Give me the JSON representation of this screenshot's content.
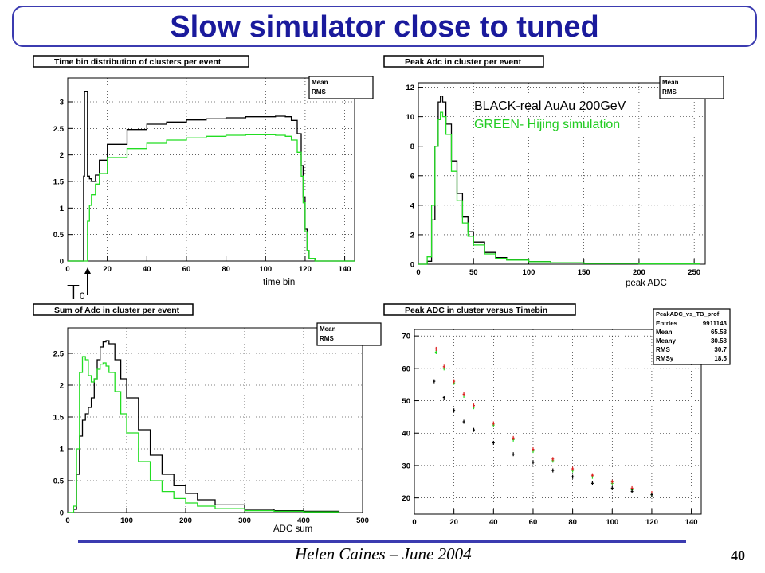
{
  "slide": {
    "title": "Slow simulator close to tuned",
    "author": "Helen Caines – June 2004",
    "number": "40"
  },
  "colors": {
    "real": "#000000",
    "sim": "#22dd22",
    "profile": "#dd2222",
    "title": "#1a1a9c",
    "accent": "#3b3bb0"
  },
  "annotations": {
    "t0_main": "T",
    "t0_sub": "0",
    "legend_black": "BLACK-real AuAu 200GeV",
    "legend_green": "GREEN- Hijing simulation"
  },
  "stats_common": {
    "mean": "Mean",
    "rms": "RMS"
  },
  "stats_box": {
    "title": "PeakADC_vs_TB_prof",
    "rows": [
      {
        "label": "Entries",
        "value": "9911143"
      },
      {
        "label": "Mean",
        "value": "65.58"
      },
      {
        "label": "Meany",
        "value": "30.58"
      },
      {
        "label": "RMS",
        "value": "30.7"
      },
      {
        "label": "RMSy",
        "value": "18.5"
      }
    ]
  },
  "chart_data": [
    {
      "type": "line",
      "title": "Time bin distribution of clusters per event",
      "xlabel": "time bin",
      "ylabel": "",
      "xlim": [
        0,
        145
      ],
      "ylim": [
        0,
        3.45
      ],
      "xticks": [
        0,
        20,
        40,
        60,
        80,
        100,
        120,
        140
      ],
      "yticks": [
        0,
        0.5,
        1,
        1.5,
        2,
        2.5,
        3
      ],
      "series": [
        {
          "color": "black",
          "x": [
            0,
            7.5,
            8,
            8.5,
            9,
            10,
            11,
            12,
            14,
            16,
            20,
            30,
            40,
            50,
            60,
            70,
            80,
            90,
            100,
            105,
            110,
            113,
            116,
            118,
            119,
            120,
            121,
            122,
            125,
            145
          ],
          "y": [
            0,
            0,
            1.6,
            3.2,
            3.2,
            1.6,
            1.55,
            1.5,
            1.62,
            1.9,
            2.2,
            2.48,
            2.58,
            2.62,
            2.66,
            2.68,
            2.7,
            2.72,
            2.72,
            2.73,
            2.72,
            2.65,
            2.4,
            1.8,
            1.2,
            0.6,
            0.2,
            0.05,
            0,
            0
          ]
        },
        {
          "color": "green",
          "x": [
            0,
            9.5,
            10,
            11,
            12,
            14,
            16,
            20,
            30,
            40,
            50,
            60,
            70,
            80,
            90,
            100,
            105,
            110,
            113,
            116,
            118,
            119,
            120,
            121,
            122,
            125,
            145
          ],
          "y": [
            0,
            0,
            0.75,
            1.05,
            1.25,
            1.45,
            1.65,
            1.95,
            2.12,
            2.22,
            2.28,
            2.32,
            2.35,
            2.37,
            2.38,
            2.38,
            2.37,
            2.35,
            2.28,
            2.05,
            1.6,
            1.1,
            0.55,
            0.2,
            0.05,
            0,
            0
          ]
        }
      ]
    },
    {
      "type": "line",
      "title": "Peak Adc in cluster per event",
      "xlabel": "peak ADC",
      "ylabel": "",
      "xlim": [
        0,
        260
      ],
      "ylim": [
        0,
        12.3
      ],
      "xticks": [
        0,
        50,
        100,
        150,
        200,
        250
      ],
      "yticks": [
        0,
        2,
        4,
        6,
        8,
        10,
        12
      ],
      "series": [
        {
          "color": "black",
          "x": [
            0,
            8,
            12,
            15,
            18,
            20,
            22,
            25,
            30,
            35,
            40,
            45,
            50,
            60,
            70,
            80,
            100,
            120,
            150,
            200,
            255
          ],
          "y": [
            0,
            0.2,
            3.0,
            8.0,
            11.0,
            11.4,
            11.0,
            9.5,
            7.0,
            4.8,
            3.2,
            2.2,
            1.5,
            0.8,
            0.45,
            0.3,
            0.18,
            0.1,
            0.05,
            0.02,
            0
          ]
        },
        {
          "color": "green",
          "x": [
            0,
            8,
            12,
            15,
            18,
            20,
            22,
            25,
            30,
            35,
            40,
            45,
            50,
            60,
            70,
            80,
            100,
            120,
            150,
            200,
            255
          ],
          "y": [
            0,
            0.5,
            4.0,
            8.0,
            9.8,
            10.3,
            10.0,
            8.8,
            6.3,
            4.3,
            2.8,
            1.9,
            1.3,
            0.7,
            0.4,
            0.28,
            0.17,
            0.1,
            0.05,
            0.02,
            0
          ]
        }
      ]
    },
    {
      "type": "line",
      "title": "Sum of Adc in cluster per event",
      "xlabel": "ADC sum",
      "ylabel": "",
      "xlim": [
        0,
        500
      ],
      "ylim": [
        0,
        2.9
      ],
      "xticks": [
        0,
        100,
        200,
        300,
        400,
        500
      ],
      "yticks": [
        0,
        0.5,
        1,
        1.5,
        2,
        2.5
      ],
      "series": [
        {
          "color": "black",
          "x": [
            0,
            10,
            15,
            20,
            25,
            30,
            35,
            40,
            45,
            50,
            55,
            60,
            65,
            70,
            80,
            90,
            100,
            120,
            140,
            160,
            180,
            200,
            220,
            250,
            300,
            350,
            400,
            460
          ],
          "y": [
            0,
            0.05,
            0.6,
            1.2,
            1.45,
            1.55,
            1.65,
            1.8,
            2.1,
            2.4,
            2.6,
            2.68,
            2.7,
            2.65,
            2.4,
            2.1,
            1.8,
            1.3,
            0.9,
            0.6,
            0.42,
            0.3,
            0.2,
            0.12,
            0.05,
            0.03,
            0.02,
            0.01
          ]
        },
        {
          "color": "green",
          "x": [
            0,
            10,
            15,
            20,
            25,
            30,
            35,
            40,
            45,
            50,
            55,
            60,
            65,
            70,
            80,
            90,
            100,
            120,
            140,
            160,
            180,
            200,
            220,
            250,
            300,
            350,
            400,
            460
          ],
          "y": [
            0,
            0.1,
            1.0,
            2.2,
            2.45,
            2.4,
            2.15,
            2.05,
            2.1,
            2.25,
            2.33,
            2.35,
            2.3,
            2.2,
            1.9,
            1.55,
            1.25,
            0.8,
            0.5,
            0.33,
            0.22,
            0.15,
            0.1,
            0.06,
            0.03,
            0.02,
            0.01,
            0
          ]
        }
      ]
    },
    {
      "type": "scatter",
      "title": "Peak ADC in cluster versus Timebin",
      "xlabel": "",
      "ylabel": "",
      "xlim": [
        0,
        145
      ],
      "ylim": [
        15,
        72
      ],
      "xticks": [
        0,
        20,
        40,
        60,
        80,
        100,
        120,
        140
      ],
      "yticks": [
        20,
        30,
        40,
        50,
        60,
        70
      ],
      "series": [
        {
          "color": "green",
          "x": [
            11,
            15,
            20,
            25,
            30,
            40,
            50,
            60,
            70,
            80,
            90,
            100,
            110,
            120
          ],
          "y": [
            65,
            60,
            55.5,
            51.5,
            48,
            42.5,
            38,
            34.5,
            31.5,
            28.5,
            26.5,
            24.5,
            22.5,
            21
          ]
        },
        {
          "color": "red",
          "x": [
            11,
            15,
            20,
            25,
            30,
            40,
            50,
            60,
            70,
            80,
            90,
            100,
            110,
            120
          ],
          "y": [
            66,
            60.5,
            56,
            52,
            48.5,
            43,
            38.5,
            35,
            32,
            29,
            27,
            25,
            23,
            21.5
          ]
        },
        {
          "color": "black",
          "x": [
            10,
            15,
            20,
            25,
            30,
            40,
            50,
            60,
            70,
            80,
            90,
            100,
            110,
            120
          ],
          "y": [
            56,
            51,
            47,
            43.5,
            41,
            37,
            33.5,
            31,
            28.5,
            26.5,
            24.5,
            23,
            22,
            21
          ]
        }
      ]
    }
  ]
}
